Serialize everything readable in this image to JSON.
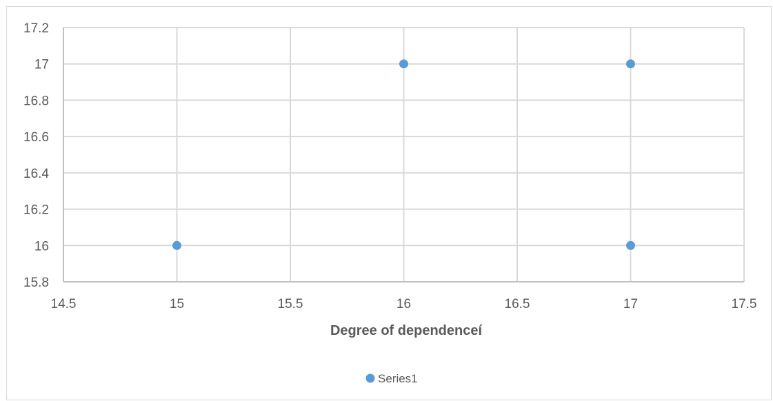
{
  "chart_data": {
    "type": "scatter",
    "title": "",
    "xlabel": "Degree of dependenceí",
    "ylabel": "",
    "xlim": [
      14.5,
      17.5
    ],
    "ylim": [
      15.8,
      17.2
    ],
    "xticks": [
      14.5,
      15,
      15.5,
      16,
      16.5,
      17,
      17.5
    ],
    "yticks": [
      15.8,
      16,
      16.2,
      16.4,
      16.6,
      16.8,
      17,
      17.2
    ],
    "xtick_labels": [
      "14.5",
      "15",
      "15.5",
      "16",
      "16.5",
      "17",
      "17.5"
    ],
    "ytick_labels": [
      "15.8",
      "16",
      "16.2",
      "16.4",
      "16.6",
      "16.8",
      "17",
      "17.2"
    ],
    "grid": true,
    "legend_position": "bottom",
    "series": [
      {
        "name": "Series1",
        "color": "#5b9bd5",
        "points": [
          {
            "x": 15,
            "y": 16
          },
          {
            "x": 16,
            "y": 17
          },
          {
            "x": 17,
            "y": 17
          },
          {
            "x": 17,
            "y": 16
          }
        ]
      }
    ]
  }
}
